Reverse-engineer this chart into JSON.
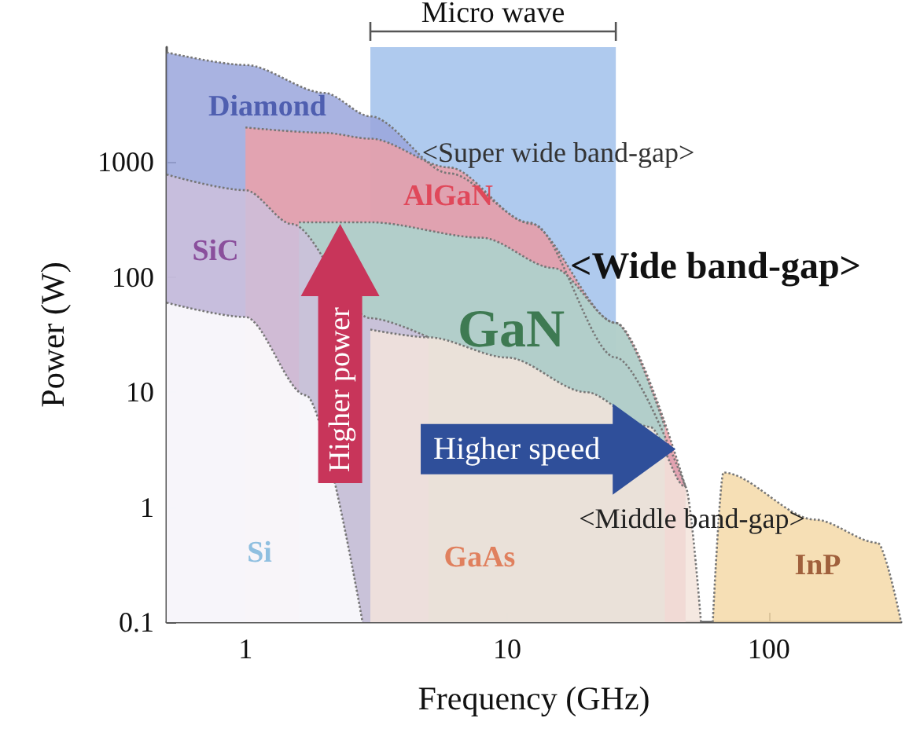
{
  "chart_data": {
    "type": "area",
    "xlabel": "Frequency (GHz)",
    "ylabel": "Power (W)",
    "log": "xy",
    "xlim": [
      0.5,
      320
    ],
    "ylim": [
      0.1,
      10000
    ],
    "xticks": [
      1,
      10,
      100
    ],
    "yticks": [
      0.1,
      1,
      10,
      100,
      1000
    ],
    "grid": false,
    "marker": "none",
    "line_style": "dotted",
    "series": [
      {
        "color": "#9aa6dc",
        "x": [
          0.5,
          1,
          2,
          3,
          6,
          12.5,
          26,
          48
        ],
        "values": [
          9000,
          7000,
          4000,
          2500,
          800,
          290,
          20,
          1.5
        ]
      },
      {
        "color": "#eca0a8",
        "x": [
          1,
          2,
          3,
          6,
          12,
          26,
          48
        ],
        "values": [
          2000,
          1800,
          1600,
          900,
          300,
          40,
          1.5
        ]
      },
      {
        "color": "#a9d6cf",
        "x": [
          1.6,
          3,
          8,
          15,
          26,
          40
        ],
        "values": [
          300,
          300,
          220,
          120,
          40,
          5
        ]
      },
      {
        "color": "#cdbfdc",
        "x": [
          0.5,
          1,
          1.5,
          2.2,
          3,
          5
        ],
        "values": [
          780,
          570,
          290,
          null,
          44,
          30
        ]
      },
      {
        "color": "#f3e4dc",
        "x": [
          3,
          5,
          10,
          20,
          35,
          48,
          55
        ],
        "values": [
          35,
          30,
          20,
          10,
          5,
          1.5,
          0.1
        ]
      },
      {
        "color": "#f5d9a8",
        "x": [
          61,
          67,
          150,
          260,
          320
        ],
        "values": [
          0.1,
          2,
          0.78,
          0.49,
          0.1
        ]
      },
      {
        "color": "#ffffff",
        "x": [
          0.5,
          1,
          1.7,
          2.1,
          2.7,
          2.8
        ],
        "values": [
          60,
          45,
          9.4,
          null,
          null,
          0.1
        ]
      }
    ],
    "bands": [
      {
        "axis": "x",
        "from": 3,
        "to": 26,
        "label": "Micro wave",
        "color": "#6e9fe0"
      }
    ],
    "annotations": [
      "Diamond",
      "<Super wide band-gap>",
      "AlGaN",
      "SiC",
      "<Wide band-gap>",
      "GaN",
      {
        "text": "Higher power",
        "x": 2.3,
        "y": 290
      },
      {
        "text": "Higher speed",
        "x": 44,
        "y": 3.2
      },
      "<Middle band-gap>",
      "Si",
      "GaAs",
      "InP"
    ]
  }
}
